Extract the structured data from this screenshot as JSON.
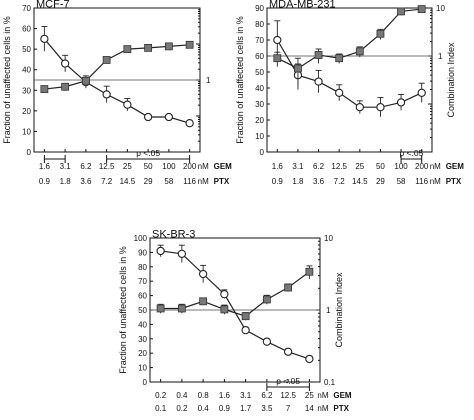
{
  "chart_data": [
    {
      "type": "line",
      "title": "MCF-7",
      "ylabel": "Fraction of unaffected cells in %",
      "y2label": "",
      "ylim": [
        0,
        70
      ],
      "yticks": [
        "0",
        "10",
        "20",
        "30",
        "40",
        "50",
        "60",
        "70"
      ],
      "y2scale": "log",
      "y2lim": [
        0.01,
        100
      ],
      "y2ticks": [],
      "ref_ratio": 1,
      "ref_label": "1",
      "categories_gem": [
        "1.6",
        "3.1",
        "6.2",
        "12.5",
        "25",
        "50",
        "100",
        "200"
      ],
      "categories_ptx": [
        "0.9",
        "1.8",
        "3.6",
        "7.2",
        "14.5",
        "29",
        "58",
        "116"
      ],
      "unit_gem": "nM",
      "gem_label": "GEM",
      "unit_ptx": "nM",
      "ptx_label": "PTX",
      "series": [
        {
          "name": "",
          "marker": "circle-open",
          "axis": "left",
          "values": [
            55,
            43,
            34,
            28,
            23,
            17,
            17,
            14
          ],
          "err": [
            6,
            4,
            3,
            4,
            3,
            1,
            1,
            1
          ]
        },
        {
          "name": "",
          "marker": "square-filled",
          "axis": "right",
          "values": [
            0.56,
            0.65,
            0.95,
            3.6,
            7.2,
            7.8,
            8.6,
            9.5
          ],
          "err": [
            0.12,
            0.15,
            0.15,
            0.4,
            1.2,
            1.3,
            0.8,
            1
          ]
        }
      ],
      "sig_spans": [
        {
          "from": 0,
          "to": 1,
          "label": ""
        },
        {
          "from": 3,
          "to": 7,
          "label": "p <.05"
        }
      ]
    },
    {
      "type": "line",
      "title": "MDA-MB-231",
      "ylabel": "Fraction of unaffected cells in %",
      "y2label": "Combination Index",
      "ylim": [
        0,
        90
      ],
      "yticks": [
        "0",
        "10",
        "20",
        "30",
        "40",
        "50",
        "60",
        "70",
        "80",
        "90"
      ],
      "y2scale": "log",
      "y2lim": [
        0.01,
        10
      ],
      "y2ticks": [
        "10"
      ],
      "ref_ratio": 1,
      "ref_label": "1",
      "categories_gem": [
        "1.6",
        "3.1",
        "6.2",
        "12.5",
        "25",
        "50",
        "100",
        "200"
      ],
      "categories_ptx": [
        "0.9",
        "1.8",
        "3.6",
        "7.2",
        "14.5",
        "29",
        "58",
        "116"
      ],
      "unit_gem": "nM",
      "gem_label": "GEM",
      "unit_ptx": "nM",
      "ptx_label": "PTX",
      "series": [
        {
          "name": "",
          "marker": "circle-open",
          "axis": "left",
          "values": [
            70,
            48,
            44,
            37,
            28,
            28,
            31,
            37
          ],
          "err": [
            12,
            7,
            7,
            5,
            4,
            6,
            5,
            6
          ]
        },
        {
          "name": "",
          "marker": "square-filled",
          "axis": "right",
          "values": [
            0.9,
            0.55,
            1.05,
            0.9,
            1.25,
            2.9,
            8.5,
            9.5
          ],
          "err": [
            0.3,
            0.35,
            0.35,
            0.2,
            0.3,
            0.7,
            1.5,
            0.6
          ]
        }
      ],
      "sig_spans": [
        {
          "from": 6,
          "to": 7,
          "label": "p <.05"
        }
      ]
    },
    {
      "type": "line",
      "title": "SK-BR-3",
      "ylabel": "Fraction of unaffected cells in %",
      "y2label": "Combination Index",
      "ylim": [
        0,
        100
      ],
      "yticks": [
        "0",
        "10",
        "20",
        "30",
        "40",
        "50",
        "60",
        "70",
        "80",
        "90",
        "100"
      ],
      "y2scale": "log",
      "y2lim": [
        0.1,
        10
      ],
      "y2ticks": [
        "10",
        "0.1"
      ],
      "ref_ratio": 1,
      "ref_label": "1",
      "categories_gem": [
        "0.2",
        "0.4",
        "0.8",
        "1.6",
        "3.1",
        "6.2",
        "12.5",
        "25"
      ],
      "categories_ptx": [
        "0.1",
        "0.2",
        "0.4",
        "0.9",
        "1.7",
        "3.5",
        "7",
        "14"
      ],
      "unit_gem": "nM",
      "gem_label": "GEM",
      "unit_ptx": "nM",
      "ptx_label": "PTX",
      "series": [
        {
          "name": "",
          "marker": "circle-open",
          "axis": "left",
          "values": [
            91,
            89,
            75,
            61,
            36,
            28,
            21,
            16
          ],
          "err": [
            4,
            6,
            6,
            3,
            2,
            2,
            2,
            2
          ]
        },
        {
          "name": "",
          "marker": "square-filled",
          "axis": "right",
          "values": [
            1.05,
            1.05,
            1.32,
            1.02,
            0.82,
            1.4,
            2.05,
            3.4
          ],
          "err": [
            0.15,
            0.15,
            0.15,
            0.15,
            0.1,
            0.2,
            0.25,
            0.7
          ]
        }
      ],
      "sig_spans": [
        {
          "from": 5,
          "to": 7,
          "label": "p <.05"
        }
      ]
    }
  ]
}
